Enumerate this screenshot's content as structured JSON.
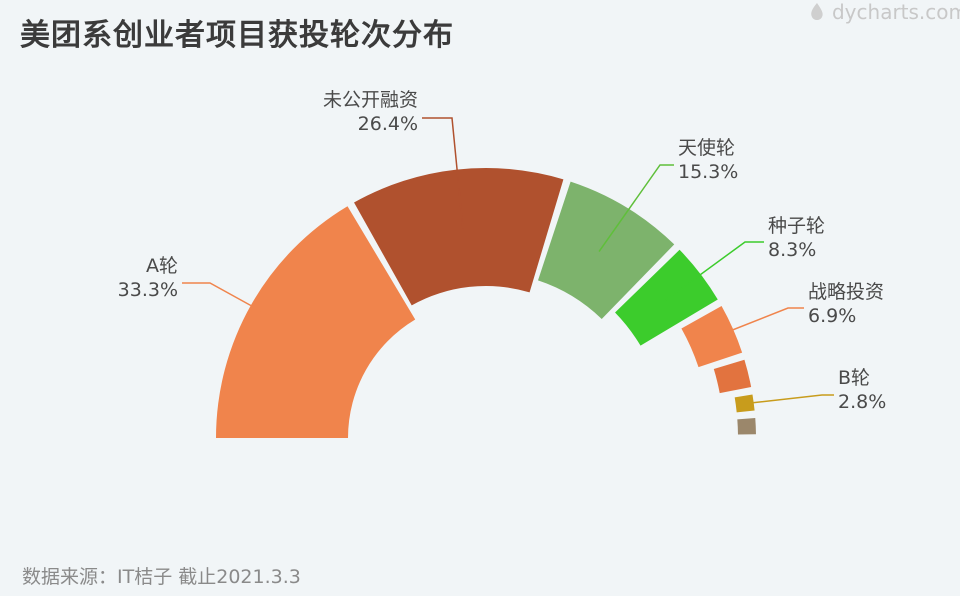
{
  "title": "美团系创业者项目获投轮次分布",
  "watermark": "dycharts.com",
  "source": "数据来源：IT桔子 截止2021.3.3",
  "chart_data": {
    "type": "pie",
    "variant": "half-donut",
    "categories": [
      "A轮",
      "未公开融资",
      "天使轮",
      "种子轮",
      "战略投资",
      "",
      "B轮",
      ""
    ],
    "values": [
      33.3,
      26.4,
      15.3,
      8.3,
      6.9,
      4.2,
      2.8,
      2.8
    ],
    "value_labels": [
      "33.3%",
      "26.4%",
      "15.3%",
      "8.3%",
      "6.9%",
      "",
      "2.8%",
      ""
    ],
    "colors": [
      "#f0844c",
      "#b0512e",
      "#7db36c",
      "#3ccc2c",
      "#f0844c",
      "#e2733f",
      "#c89c1c",
      "#9b876b"
    ]
  }
}
